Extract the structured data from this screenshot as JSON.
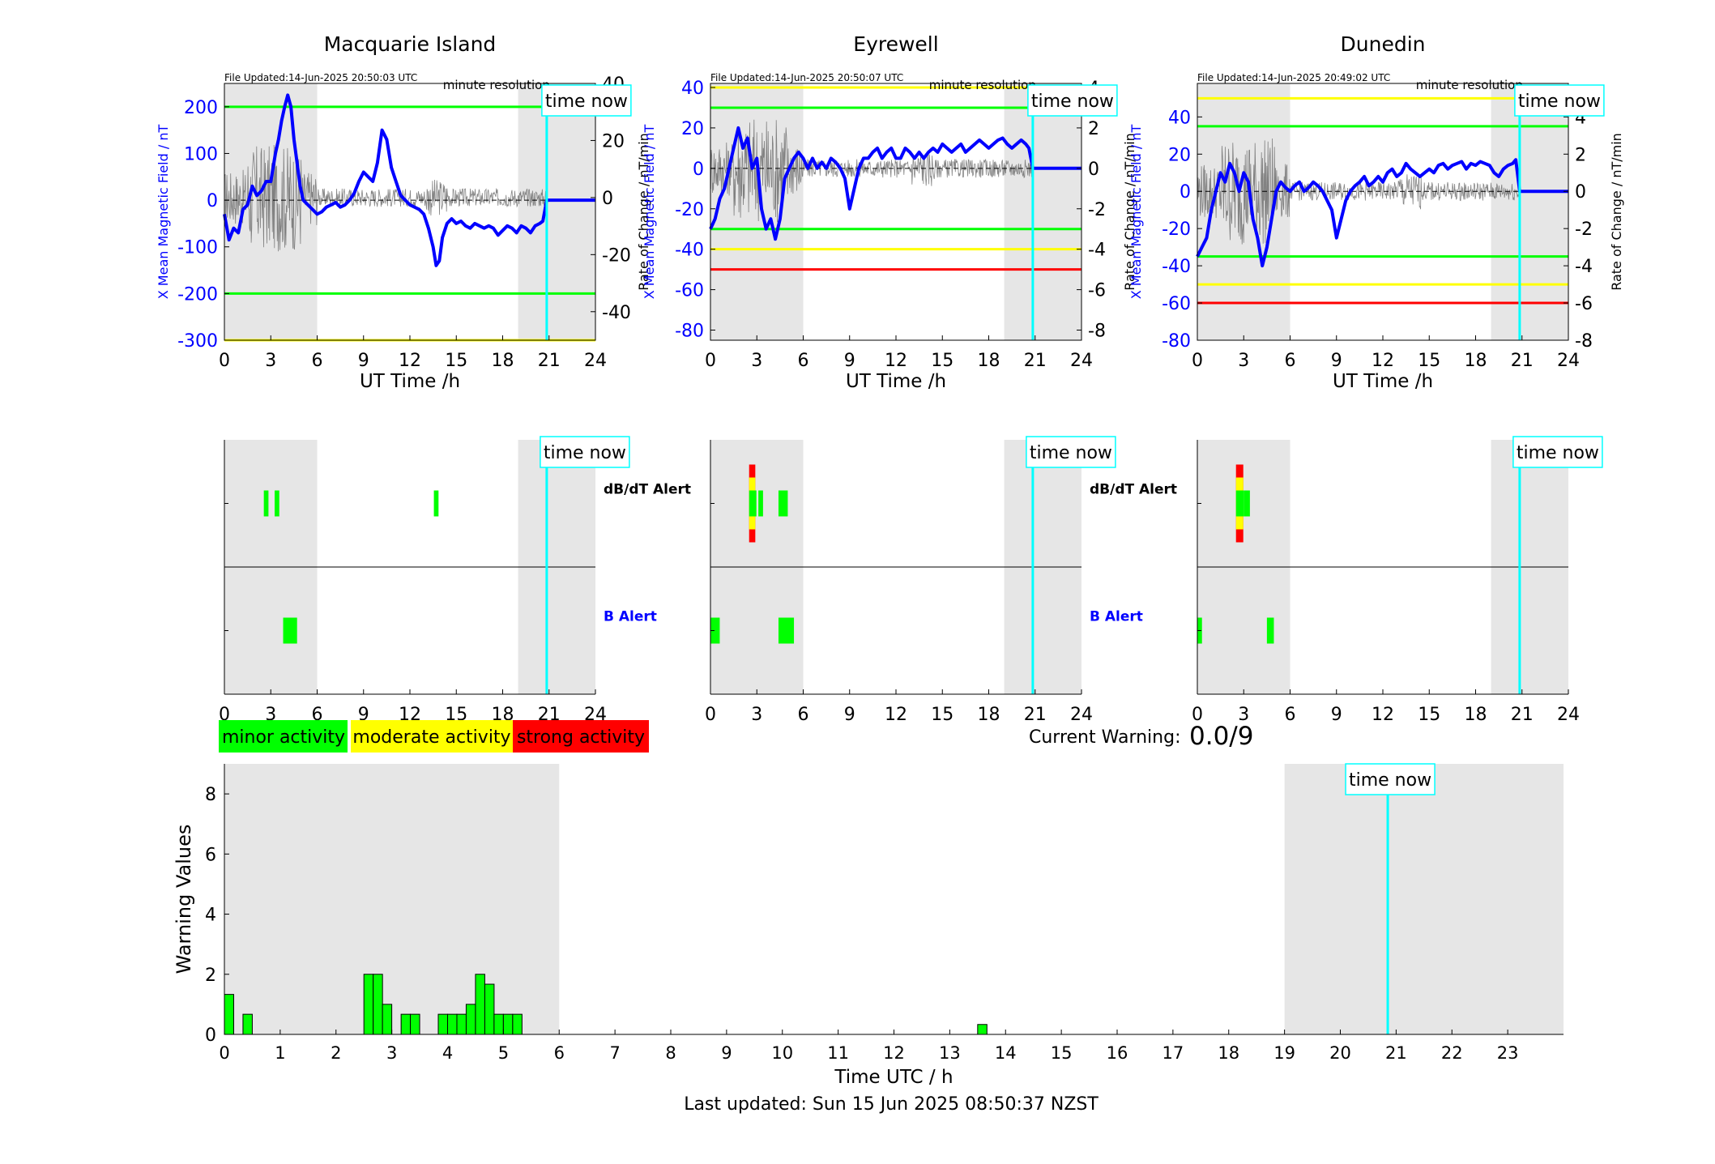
{
  "footer": {
    "last_updated": "Last updated: Sun 15 Jun 2025 08:50:37 NZST"
  },
  "legend": {
    "minor": "minor activity",
    "moderate": "moderate activity",
    "strong": "strong activity"
  },
  "current_warning": {
    "label": "Current Warning:",
    "value": "0.0/9"
  },
  "colors": {
    "field": "#0000ff",
    "green": "#00ff00",
    "yellow": "#ffff00",
    "red": "#ff0000",
    "timenow": "#00ffff",
    "shade": "#e6e6e6"
  },
  "chart_data": [
    {
      "type": "line",
      "title": "Macquarie Island",
      "file_updated": "File Updated:14-Jun-2025 20:50:03 UTC",
      "resolution": "minute resolution",
      "time_now_label": "time now",
      "xlabel": "UT Time /h",
      "ylabel_left": "X Mean Magnetic Field / nT",
      "ylabel_right": "Rate of Change / nT/min",
      "xlim": [
        0,
        24
      ],
      "xticks": [
        0,
        3,
        6,
        9,
        12,
        15,
        18,
        21,
        24
      ],
      "ylim_left": [
        -300,
        250
      ],
      "yticks_left": [
        -300,
        -200,
        -100,
        0,
        100,
        200
      ],
      "ylim_right": [
        -50,
        40
      ],
      "yticks_right": [
        -40,
        -20,
        0,
        20,
        40
      ],
      "shaded": [
        [
          0,
          6
        ],
        [
          19,
          24
        ]
      ],
      "time_now": 20.85,
      "thresholds": [
        {
          "value": 200,
          "color": "green"
        },
        {
          "value": -200,
          "color": "green"
        },
        {
          "value": -300,
          "color": "yellow"
        }
      ],
      "series": [
        {
          "x": [
            0,
            0.3,
            0.6,
            0.9,
            1.2,
            1.5,
            1.8,
            2.1,
            2.4,
            2.7,
            3.0,
            3.3,
            3.5,
            3.7,
            3.9,
            4.1,
            4.3,
            4.5,
            4.7,
            4.9,
            5.1,
            5.4,
            5.7,
            6.0,
            6.3,
            6.6,
            6.9,
            7.2,
            7.5,
            7.8,
            8.1,
            8.4,
            8.7,
            9.0,
            9.3,
            9.6,
            9.9,
            10.2,
            10.5,
            10.8,
            11.1,
            11.4,
            11.7,
            12.0,
            12.3,
            12.6,
            12.9,
            13.2,
            13.5,
            13.7,
            13.9,
            14.1,
            14.4,
            14.7,
            15.0,
            15.3,
            15.6,
            15.9,
            16.2,
            16.5,
            16.8,
            17.1,
            17.4,
            17.7,
            18.0,
            18.3,
            18.6,
            18.9,
            19.2,
            19.5,
            19.8,
            20.1,
            20.4,
            20.6,
            20.85,
            21.5,
            22.5,
            24.0
          ],
          "values": [
            -30,
            -85,
            -60,
            -70,
            -20,
            -10,
            30,
            10,
            20,
            40,
            40,
            100,
            130,
            170,
            200,
            225,
            200,
            130,
            80,
            30,
            0,
            -10,
            -20,
            -30,
            -25,
            -15,
            -10,
            -5,
            -15,
            -10,
            0,
            15,
            40,
            60,
            50,
            40,
            80,
            150,
            130,
            70,
            40,
            10,
            0,
            -10,
            -15,
            -20,
            -30,
            -60,
            -100,
            -140,
            -130,
            -80,
            -50,
            -40,
            -50,
            -45,
            -55,
            -60,
            -50,
            -55,
            -60,
            -55,
            -60,
            -75,
            -65,
            -55,
            -60,
            -70,
            -55,
            -60,
            -70,
            -55,
            -50,
            -45,
            0,
            0,
            0,
            0
          ]
        }
      ]
    },
    {
      "type": "line",
      "title": "Eyrewell",
      "file_updated": "File Updated:14-Jun-2025 20:50:07 UTC",
      "resolution": "minute resolution",
      "time_now_label": "time now",
      "xlabel": "UT Time /h",
      "ylabel_left": "X Mean Magnetic Field / nT",
      "ylabel_right": "Rate of Change / nT/min",
      "xlim": [
        0,
        24
      ],
      "xticks": [
        0,
        3,
        6,
        9,
        12,
        15,
        18,
        21,
        24
      ],
      "ylim_left": [
        -85,
        42
      ],
      "yticks_left": [
        -80,
        -60,
        -40,
        -20,
        0,
        20,
        40
      ],
      "ylim_right": [
        -8.5,
        4.2
      ],
      "yticks_right": [
        -8,
        -6,
        -4,
        -2,
        0,
        2,
        4
      ],
      "shaded": [
        [
          0,
          6
        ],
        [
          19,
          24
        ]
      ],
      "time_now": 20.85,
      "thresholds": [
        {
          "value": 40,
          "color": "yellow"
        },
        {
          "value": 30,
          "color": "green"
        },
        {
          "value": -30,
          "color": "green"
        },
        {
          "value": -40,
          "color": "yellow"
        },
        {
          "value": -50,
          "color": "red"
        }
      ],
      "series": [
        {
          "x": [
            0,
            0.3,
            0.6,
            0.9,
            1.2,
            1.5,
            1.8,
            2.1,
            2.4,
            2.7,
            3.0,
            3.3,
            3.6,
            3.9,
            4.2,
            4.5,
            4.8,
            5.1,
            5.4,
            5.7,
            6.0,
            6.3,
            6.6,
            6.9,
            7.2,
            7.5,
            7.8,
            8.1,
            8.4,
            8.7,
            9.0,
            9.3,
            9.6,
            9.9,
            10.2,
            10.5,
            10.8,
            11.1,
            11.4,
            11.7,
            12.0,
            12.3,
            12.6,
            12.9,
            13.2,
            13.5,
            13.8,
            14.1,
            14.4,
            14.7,
            15.0,
            15.3,
            15.6,
            15.9,
            16.2,
            16.5,
            16.8,
            17.1,
            17.4,
            17.7,
            18.0,
            18.3,
            18.6,
            18.9,
            19.2,
            19.5,
            19.8,
            20.1,
            20.4,
            20.6,
            20.85,
            22.0,
            24.0
          ],
          "values": [
            -30,
            -25,
            -15,
            -10,
            0,
            10,
            20,
            10,
            15,
            0,
            5,
            -20,
            -30,
            -25,
            -35,
            -25,
            -5,
            0,
            5,
            8,
            5,
            0,
            5,
            0,
            3,
            0,
            5,
            3,
            0,
            -5,
            -20,
            -10,
            0,
            5,
            5,
            8,
            10,
            5,
            8,
            10,
            5,
            5,
            10,
            8,
            5,
            8,
            5,
            8,
            10,
            8,
            12,
            10,
            8,
            10,
            12,
            8,
            10,
            12,
            14,
            12,
            10,
            12,
            14,
            15,
            12,
            10,
            12,
            14,
            12,
            10,
            0,
            0,
            0
          ]
        }
      ]
    },
    {
      "type": "line",
      "title": "Dunedin",
      "file_updated": "File Updated:14-Jun-2025 20:49:02 UTC",
      "resolution": "minute resolution",
      "time_now_label": "time now",
      "xlabel": "UT Time /h",
      "ylabel_left": "X Mean Magnetic Field / nT",
      "ylabel_right": "Rate of Change / nT/min",
      "xlim": [
        0,
        24
      ],
      "xticks": [
        0,
        3,
        6,
        9,
        12,
        15,
        18,
        21,
        24
      ],
      "ylim_left": [
        -80,
        58
      ],
      "yticks_left": [
        -80,
        -60,
        -40,
        -20,
        0,
        20,
        40
      ],
      "ylim_right": [
        -8,
        5.8
      ],
      "yticks_right": [
        -8,
        -6,
        -4,
        -2,
        0,
        2,
        4
      ],
      "shaded": [
        [
          0,
          6
        ],
        [
          19,
          24
        ]
      ],
      "time_now": 20.85,
      "thresholds": [
        {
          "value": 50,
          "color": "yellow"
        },
        {
          "value": 35,
          "color": "green"
        },
        {
          "value": -35,
          "color": "green"
        },
        {
          "value": -50,
          "color": "yellow"
        },
        {
          "value": -60,
          "color": "red"
        }
      ],
      "series": [
        {
          "x": [
            0,
            0.3,
            0.6,
            0.9,
            1.2,
            1.5,
            1.8,
            2.1,
            2.4,
            2.7,
            3.0,
            3.3,
            3.6,
            3.9,
            4.2,
            4.5,
            4.8,
            5.1,
            5.4,
            5.7,
            6.0,
            6.3,
            6.6,
            6.9,
            7.2,
            7.5,
            7.8,
            8.1,
            8.4,
            8.7,
            9.0,
            9.3,
            9.6,
            9.9,
            10.2,
            10.5,
            10.8,
            11.1,
            11.4,
            11.7,
            12.0,
            12.3,
            12.6,
            12.9,
            13.2,
            13.5,
            13.8,
            14.1,
            14.4,
            14.7,
            15.0,
            15.3,
            15.6,
            15.9,
            16.2,
            16.5,
            16.8,
            17.1,
            17.4,
            17.7,
            18.0,
            18.3,
            18.6,
            18.9,
            19.2,
            19.5,
            19.8,
            20.1,
            20.4,
            20.6,
            20.85,
            22.0,
            24.0
          ],
          "values": [
            -35,
            -30,
            -25,
            -10,
            0,
            10,
            5,
            15,
            10,
            0,
            10,
            5,
            -15,
            -25,
            -40,
            -30,
            -15,
            0,
            5,
            2,
            0,
            3,
            5,
            0,
            2,
            5,
            3,
            0,
            -5,
            -10,
            -25,
            -15,
            -5,
            0,
            3,
            5,
            8,
            3,
            5,
            8,
            5,
            10,
            12,
            8,
            10,
            15,
            12,
            10,
            8,
            10,
            12,
            10,
            14,
            15,
            12,
            14,
            15,
            16,
            12,
            15,
            14,
            16,
            15,
            14,
            10,
            8,
            12,
            14,
            15,
            17,
            0,
            0,
            0
          ]
        }
      ]
    },
    {
      "type": "heatmap",
      "station": "Macquarie Island",
      "time_now_label": "time now",
      "xlim": [
        0,
        24
      ],
      "xticks": [
        0,
        3,
        6,
        9,
        12,
        15,
        18,
        21,
        24
      ],
      "shaded": [
        [
          0,
          6
        ],
        [
          19,
          24
        ]
      ],
      "time_now": 20.85,
      "rows": [
        {
          "label": "dB/dT Alert",
          "color": "#000000",
          "blocks": [
            {
              "x": 2.55,
              "w": 0.3,
              "level": "minor"
            },
            {
              "x": 3.25,
              "w": 0.3,
              "level": "minor"
            },
            {
              "x": 13.55,
              "w": 0.3,
              "level": "minor"
            }
          ]
        },
        {
          "label": "B Alert",
          "color": "#0000ff",
          "blocks": [
            {
              "x": 3.8,
              "w": 0.9,
              "level": "minor"
            }
          ]
        }
      ]
    },
    {
      "type": "heatmap",
      "station": "Eyrewell",
      "time_now_label": "time now",
      "xlim": [
        0,
        24
      ],
      "xticks": [
        0,
        3,
        6,
        9,
        12,
        15,
        18,
        21,
        24
      ],
      "shaded": [
        [
          0,
          6
        ],
        [
          19,
          24
        ]
      ],
      "time_now": 20.85,
      "rows": [
        {
          "label": "dB/dT Alert",
          "color": "#000000",
          "blocks": [
            {
              "x": 2.5,
              "w": 0.4,
              "level": "stacked"
            },
            {
              "x": 3.1,
              "w": 0.3,
              "level": "minor"
            },
            {
              "x": 4.4,
              "w": 0.6,
              "level": "minor"
            }
          ]
        },
        {
          "label": "B Alert",
          "color": "#0000ff",
          "blocks": [
            {
              "x": 0,
              "w": 0.6,
              "level": "minor"
            },
            {
              "x": 4.4,
              "w": 1.0,
              "level": "minor"
            }
          ]
        }
      ]
    },
    {
      "type": "heatmap",
      "station": "Dunedin",
      "time_now_label": "time now",
      "xlim": [
        0,
        24
      ],
      "xticks": [
        0,
        3,
        6,
        9,
        12,
        15,
        18,
        21,
        24
      ],
      "shaded": [
        [
          0,
          6
        ],
        [
          19,
          24
        ]
      ],
      "time_now": 20.85,
      "rows": [
        {
          "label": "dB/dT Alert",
          "color": "#000000",
          "blocks": [
            {
              "x": 2.5,
              "w": 0.5,
              "level": "stacked"
            },
            {
              "x": 3.0,
              "w": 0.4,
              "level": "minor"
            }
          ]
        },
        {
          "label": "B Alert",
          "color": "#0000ff",
          "blocks": [
            {
              "x": 0,
              "w": 0.3,
              "level": "minor"
            },
            {
              "x": 4.5,
              "w": 0.45,
              "level": "minor"
            }
          ]
        }
      ]
    },
    {
      "type": "bar",
      "xlabel": "Time UTC / h",
      "ylabel": "Warning Values",
      "time_now_label": "time now",
      "xlim": [
        0,
        24
      ],
      "ylim": [
        0,
        9
      ],
      "xticks": [
        0,
        1,
        2,
        3,
        4,
        5,
        6,
        7,
        8,
        9,
        10,
        11,
        12,
        13,
        14,
        15,
        16,
        17,
        18,
        19,
        20,
        21,
        22,
        23
      ],
      "yticks": [
        0,
        2,
        4,
        6,
        8
      ],
      "shaded": [
        [
          0,
          6
        ],
        [
          19,
          24
        ]
      ],
      "time_now": 20.85,
      "bar_width": 0.1667,
      "x": [
        0,
        0.333,
        2.5,
        2.667,
        2.833,
        3.167,
        3.333,
        3.833,
        4.0,
        4.167,
        4.333,
        4.5,
        4.667,
        4.833,
        5.0,
        5.167,
        13.5
      ],
      "values": [
        1.33,
        0.67,
        2,
        2,
        1,
        0.67,
        0.67,
        0.67,
        0.67,
        0.67,
        1,
        2,
        1.67,
        0.67,
        0.67,
        0.67,
        0.33
      ]
    }
  ]
}
